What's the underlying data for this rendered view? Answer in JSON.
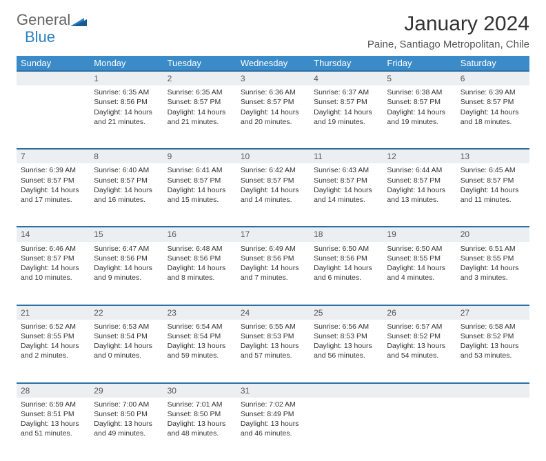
{
  "logo": {
    "text1": "General",
    "text2": "Blue"
  },
  "title": "January 2024",
  "location": "Paine, Santiago Metropolitan, Chile",
  "colors": {
    "header_bg": "#3b8bc9",
    "header_border": "#2d6fa3",
    "daynum_bg": "#eceff1",
    "logo_gray": "#666666",
    "logo_blue": "#2d7fc1"
  },
  "weekdays": [
    "Sunday",
    "Monday",
    "Tuesday",
    "Wednesday",
    "Thursday",
    "Friday",
    "Saturday"
  ],
  "weeks": [
    {
      "nums": [
        "",
        "1",
        "2",
        "3",
        "4",
        "5",
        "6"
      ],
      "cells": [
        null,
        {
          "sunrise": "Sunrise: 6:35 AM",
          "sunset": "Sunset: 8:56 PM",
          "day1": "Daylight: 14 hours",
          "day2": "and 21 minutes."
        },
        {
          "sunrise": "Sunrise: 6:35 AM",
          "sunset": "Sunset: 8:57 PM",
          "day1": "Daylight: 14 hours",
          "day2": "and 21 minutes."
        },
        {
          "sunrise": "Sunrise: 6:36 AM",
          "sunset": "Sunset: 8:57 PM",
          "day1": "Daylight: 14 hours",
          "day2": "and 20 minutes."
        },
        {
          "sunrise": "Sunrise: 6:37 AM",
          "sunset": "Sunset: 8:57 PM",
          "day1": "Daylight: 14 hours",
          "day2": "and 19 minutes."
        },
        {
          "sunrise": "Sunrise: 6:38 AM",
          "sunset": "Sunset: 8:57 PM",
          "day1": "Daylight: 14 hours",
          "day2": "and 19 minutes."
        },
        {
          "sunrise": "Sunrise: 6:39 AM",
          "sunset": "Sunset: 8:57 PM",
          "day1": "Daylight: 14 hours",
          "day2": "and 18 minutes."
        }
      ]
    },
    {
      "nums": [
        "7",
        "8",
        "9",
        "10",
        "11",
        "12",
        "13"
      ],
      "cells": [
        {
          "sunrise": "Sunrise: 6:39 AM",
          "sunset": "Sunset: 8:57 PM",
          "day1": "Daylight: 14 hours",
          "day2": "and 17 minutes."
        },
        {
          "sunrise": "Sunrise: 6:40 AM",
          "sunset": "Sunset: 8:57 PM",
          "day1": "Daylight: 14 hours",
          "day2": "and 16 minutes."
        },
        {
          "sunrise": "Sunrise: 6:41 AM",
          "sunset": "Sunset: 8:57 PM",
          "day1": "Daylight: 14 hours",
          "day2": "and 15 minutes."
        },
        {
          "sunrise": "Sunrise: 6:42 AM",
          "sunset": "Sunset: 8:57 PM",
          "day1": "Daylight: 14 hours",
          "day2": "and 14 minutes."
        },
        {
          "sunrise": "Sunrise: 6:43 AM",
          "sunset": "Sunset: 8:57 PM",
          "day1": "Daylight: 14 hours",
          "day2": "and 14 minutes."
        },
        {
          "sunrise": "Sunrise: 6:44 AM",
          "sunset": "Sunset: 8:57 PM",
          "day1": "Daylight: 14 hours",
          "day2": "and 13 minutes."
        },
        {
          "sunrise": "Sunrise: 6:45 AM",
          "sunset": "Sunset: 8:57 PM",
          "day1": "Daylight: 14 hours",
          "day2": "and 11 minutes."
        }
      ]
    },
    {
      "nums": [
        "14",
        "15",
        "16",
        "17",
        "18",
        "19",
        "20"
      ],
      "cells": [
        {
          "sunrise": "Sunrise: 6:46 AM",
          "sunset": "Sunset: 8:57 PM",
          "day1": "Daylight: 14 hours",
          "day2": "and 10 minutes."
        },
        {
          "sunrise": "Sunrise: 6:47 AM",
          "sunset": "Sunset: 8:56 PM",
          "day1": "Daylight: 14 hours",
          "day2": "and 9 minutes."
        },
        {
          "sunrise": "Sunrise: 6:48 AM",
          "sunset": "Sunset: 8:56 PM",
          "day1": "Daylight: 14 hours",
          "day2": "and 8 minutes."
        },
        {
          "sunrise": "Sunrise: 6:49 AM",
          "sunset": "Sunset: 8:56 PM",
          "day1": "Daylight: 14 hours",
          "day2": "and 7 minutes."
        },
        {
          "sunrise": "Sunrise: 6:50 AM",
          "sunset": "Sunset: 8:56 PM",
          "day1": "Daylight: 14 hours",
          "day2": "and 6 minutes."
        },
        {
          "sunrise": "Sunrise: 6:50 AM",
          "sunset": "Sunset: 8:55 PM",
          "day1": "Daylight: 14 hours",
          "day2": "and 4 minutes."
        },
        {
          "sunrise": "Sunrise: 6:51 AM",
          "sunset": "Sunset: 8:55 PM",
          "day1": "Daylight: 14 hours",
          "day2": "and 3 minutes."
        }
      ]
    },
    {
      "nums": [
        "21",
        "22",
        "23",
        "24",
        "25",
        "26",
        "27"
      ],
      "cells": [
        {
          "sunrise": "Sunrise: 6:52 AM",
          "sunset": "Sunset: 8:55 PM",
          "day1": "Daylight: 14 hours",
          "day2": "and 2 minutes."
        },
        {
          "sunrise": "Sunrise: 6:53 AM",
          "sunset": "Sunset: 8:54 PM",
          "day1": "Daylight: 14 hours",
          "day2": "and 0 minutes."
        },
        {
          "sunrise": "Sunrise: 6:54 AM",
          "sunset": "Sunset: 8:54 PM",
          "day1": "Daylight: 13 hours",
          "day2": "and 59 minutes."
        },
        {
          "sunrise": "Sunrise: 6:55 AM",
          "sunset": "Sunset: 8:53 PM",
          "day1": "Daylight: 13 hours",
          "day2": "and 57 minutes."
        },
        {
          "sunrise": "Sunrise: 6:56 AM",
          "sunset": "Sunset: 8:53 PM",
          "day1": "Daylight: 13 hours",
          "day2": "and 56 minutes."
        },
        {
          "sunrise": "Sunrise: 6:57 AM",
          "sunset": "Sunset: 8:52 PM",
          "day1": "Daylight: 13 hours",
          "day2": "and 54 minutes."
        },
        {
          "sunrise": "Sunrise: 6:58 AM",
          "sunset": "Sunset: 8:52 PM",
          "day1": "Daylight: 13 hours",
          "day2": "and 53 minutes."
        }
      ]
    },
    {
      "nums": [
        "28",
        "29",
        "30",
        "31",
        "",
        "",
        ""
      ],
      "cells": [
        {
          "sunrise": "Sunrise: 6:59 AM",
          "sunset": "Sunset: 8:51 PM",
          "day1": "Daylight: 13 hours",
          "day2": "and 51 minutes."
        },
        {
          "sunrise": "Sunrise: 7:00 AM",
          "sunset": "Sunset: 8:50 PM",
          "day1": "Daylight: 13 hours",
          "day2": "and 49 minutes."
        },
        {
          "sunrise": "Sunrise: 7:01 AM",
          "sunset": "Sunset: 8:50 PM",
          "day1": "Daylight: 13 hours",
          "day2": "and 48 minutes."
        },
        {
          "sunrise": "Sunrise: 7:02 AM",
          "sunset": "Sunset: 8:49 PM",
          "day1": "Daylight: 13 hours",
          "day2": "and 46 minutes."
        },
        null,
        null,
        null
      ]
    }
  ]
}
